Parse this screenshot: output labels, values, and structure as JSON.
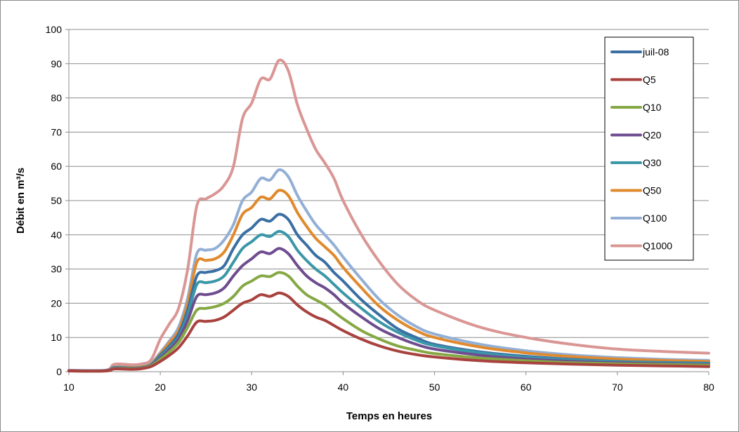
{
  "chart_data": {
    "type": "line",
    "xlabel": "Temps en heures",
    "ylabel": "Débit en m³/s",
    "xlim": [
      10,
      80
    ],
    "ylim": [
      0,
      100
    ],
    "xticks": [
      10,
      20,
      30,
      40,
      50,
      60,
      70,
      80
    ],
    "yticks": [
      0,
      10,
      20,
      30,
      40,
      50,
      60,
      70,
      80,
      90,
      100
    ],
    "grid": "horizontal",
    "legend": "top-right",
    "base_x": [
      10,
      14,
      15,
      17,
      18,
      19,
      20,
      21,
      22,
      23,
      24,
      25,
      26,
      27,
      28,
      29,
      30,
      31,
      32,
      33,
      34,
      35,
      36,
      37,
      38,
      39,
      40,
      42,
      44,
      46,
      48,
      50,
      55,
      60,
      65,
      70,
      75,
      80
    ],
    "series": [
      {
        "name": "juil-08",
        "color": "#3a6fa3",
        "values": [
          0.3,
          0.3,
          1.2,
          1.0,
          1.2,
          2.0,
          4.8,
          7.5,
          11.0,
          18.0,
          28.0,
          29.0,
          29.5,
          31.0,
          36.0,
          40.0,
          42.0,
          44.5,
          44.0,
          46.0,
          44.5,
          40.0,
          37.0,
          34.0,
          32.0,
          29.0,
          26.5,
          21.0,
          16.5,
          12.5,
          10.0,
          8.0,
          5.8,
          4.5,
          3.6,
          3.0,
          2.7,
          2.5
        ]
      },
      {
        "name": "Q5",
        "color": "#a8423f",
        "values": [
          0.2,
          0.2,
          0.8,
          0.7,
          0.9,
          1.5,
          3.0,
          4.8,
          7.0,
          10.5,
          14.5,
          14.7,
          15.0,
          16.0,
          18.0,
          20.0,
          21.0,
          22.5,
          22.0,
          23.0,
          22.0,
          19.5,
          17.5,
          16.0,
          15.0,
          13.5,
          12.0,
          9.5,
          7.5,
          6.0,
          5.0,
          4.3,
          3.2,
          2.6,
          2.2,
          1.9,
          1.7,
          1.5
        ]
      },
      {
        "name": "Q10",
        "color": "#86a844",
        "values": [
          0.2,
          0.2,
          0.9,
          0.8,
          1.0,
          1.7,
          3.6,
          5.8,
          8.5,
          13.0,
          18.0,
          18.5,
          19.0,
          20.0,
          22.0,
          25.0,
          26.5,
          28.0,
          27.8,
          29.0,
          28.0,
          25.0,
          22.5,
          21.0,
          19.5,
          17.5,
          15.5,
          12.0,
          9.5,
          7.5,
          6.3,
          5.3,
          4.0,
          3.2,
          2.6,
          2.3,
          2.1,
          1.9
        ]
      },
      {
        "name": "Q20",
        "color": "#6e4c8f",
        "values": [
          0.3,
          0.3,
          1.0,
          0.9,
          1.1,
          1.8,
          4.0,
          6.5,
          9.5,
          15.0,
          22.0,
          22.5,
          23.0,
          24.5,
          28.0,
          31.0,
          33.0,
          35.0,
          34.5,
          36.0,
          34.5,
          31.0,
          28.0,
          26.0,
          24.5,
          22.5,
          20.0,
          16.0,
          12.5,
          10.0,
          8.0,
          6.6,
          4.8,
          3.7,
          3.0,
          2.6,
          2.3,
          2.1
        ]
      },
      {
        "name": "Q30",
        "color": "#3b97a8",
        "values": [
          0.3,
          0.3,
          1.1,
          1.0,
          1.2,
          1.9,
          4.4,
          7.0,
          10.0,
          16.5,
          25.5,
          26.0,
          26.5,
          28.0,
          32.0,
          36.0,
          38.0,
          40.0,
          39.5,
          41.0,
          39.5,
          35.5,
          32.5,
          30.0,
          28.0,
          25.5,
          23.0,
          18.5,
          14.5,
          11.5,
          9.2,
          7.6,
          5.5,
          4.2,
          3.4,
          2.9,
          2.6,
          2.4
        ]
      },
      {
        "name": "Q50",
        "color": "#e08a2e",
        "values": [
          0.3,
          0.3,
          1.3,
          1.2,
          1.4,
          2.2,
          5.2,
          8.5,
          12.0,
          20.0,
          32.0,
          32.5,
          33.0,
          35.0,
          40.0,
          46.0,
          48.0,
          51.0,
          50.5,
          53.0,
          51.5,
          46.5,
          42.5,
          39.0,
          36.5,
          34.0,
          30.5,
          24.5,
          19.0,
          15.0,
          12.0,
          10.0,
          7.2,
          5.5,
          4.4,
          3.7,
          3.3,
          3.0
        ]
      },
      {
        "name": "Q100",
        "color": "#93afd6",
        "values": [
          0.3,
          0.3,
          1.4,
          1.3,
          1.5,
          2.4,
          5.6,
          9.0,
          13.0,
          21.5,
          34.5,
          35.5,
          36.0,
          38.5,
          43.0,
          50.0,
          52.5,
          56.5,
          56.0,
          59.0,
          57.0,
          51.5,
          47.0,
          43.0,
          40.0,
          37.0,
          33.5,
          27.0,
          21.0,
          16.5,
          13.2,
          11.0,
          8.0,
          6.1,
          4.9,
          4.1,
          3.6,
          3.3
        ]
      },
      {
        "name": "Q1000",
        "color": "#d99694",
        "values": [
          0.4,
          0.4,
          2.2,
          2.0,
          2.3,
          3.5,
          9.5,
          14.0,
          18.5,
          30.0,
          48.5,
          50.5,
          52.0,
          54.5,
          60.0,
          74.0,
          78.5,
          85.5,
          85.5,
          91.0,
          88.0,
          78.0,
          71.0,
          65.0,
          61.0,
          56.5,
          50.0,
          40.0,
          32.0,
          25.5,
          21.0,
          18.0,
          13.0,
          10.0,
          8.0,
          6.6,
          5.9,
          5.4
        ]
      }
    ]
  }
}
